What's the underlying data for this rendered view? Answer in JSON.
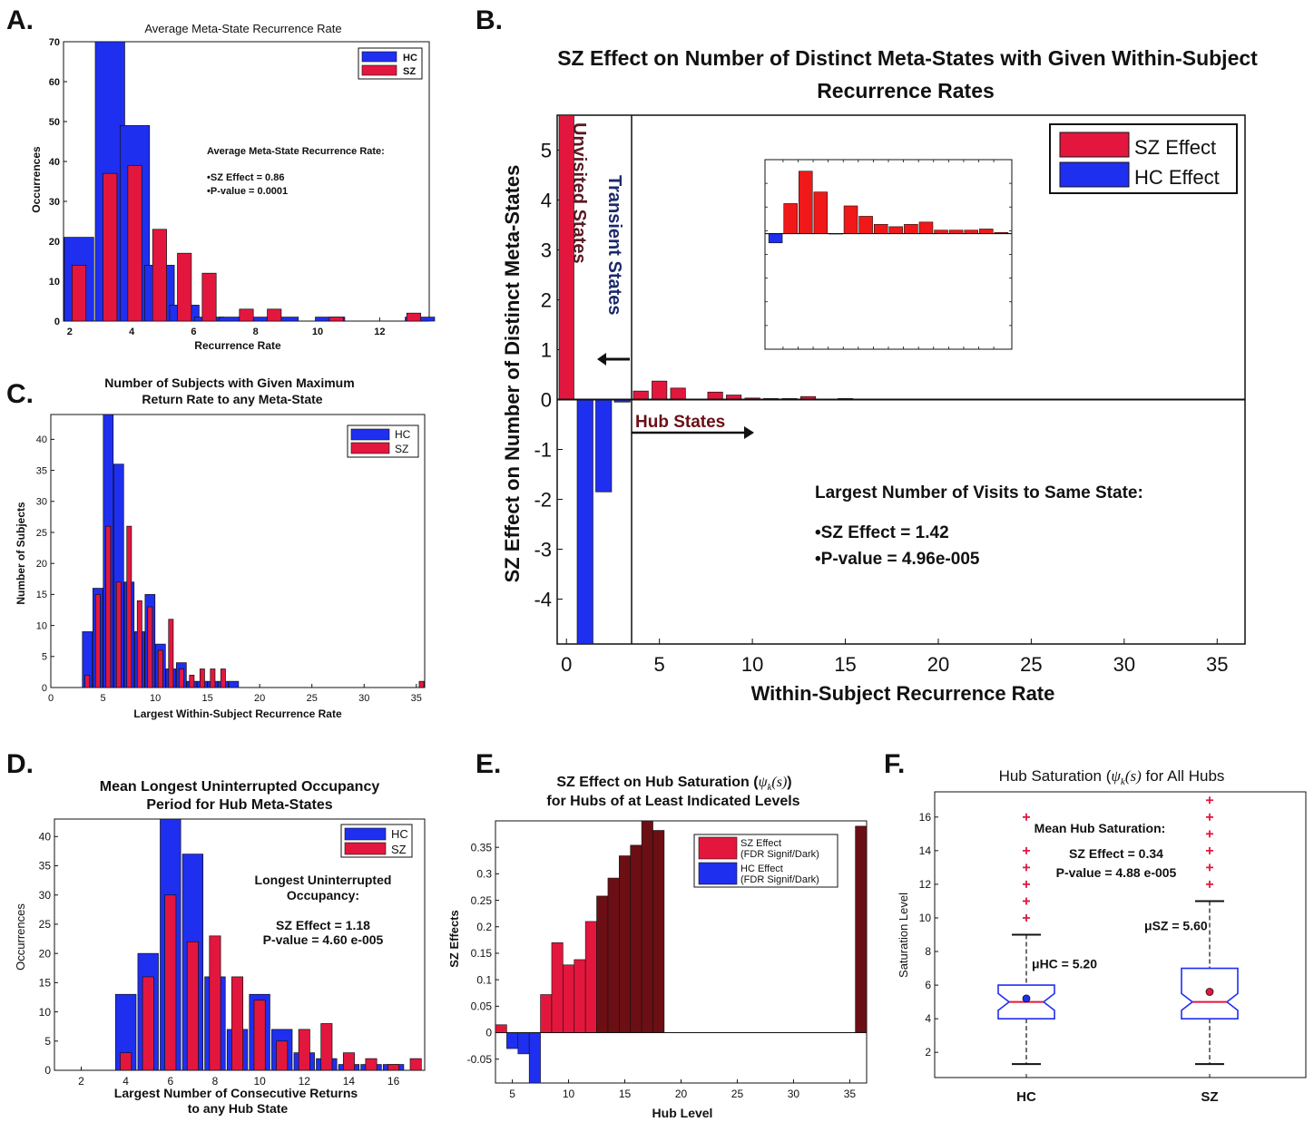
{
  "panels": {
    "A": {
      "label": "A."
    },
    "B": {
      "label": "B."
    },
    "C": {
      "label": "C."
    },
    "D": {
      "label": "D."
    },
    "E": {
      "label": "E."
    },
    "F": {
      "label": "F."
    }
  },
  "chart_data": [
    {
      "id": "A",
      "type": "bar",
      "title": "Average Meta-State Recurrence Rate",
      "xlabel": "Recurrence Rate",
      "ylabel": "Occurrences",
      "xlim": [
        1.8,
        13.6
      ],
      "ylim": [
        0,
        70
      ],
      "xticks": [
        2,
        4,
        6,
        8,
        10,
        12
      ],
      "yticks": [
        0,
        10,
        20,
        30,
        40,
        50,
        60,
        70
      ],
      "legend": "top-right",
      "colors": {
        "HC": "#1f2ff0",
        "SZ": "#e3173e"
      },
      "series": [
        {
          "name": "HC",
          "x": [
            2.3,
            3.3,
            4.1,
            4.9,
            5.7,
            6.5,
            7.3,
            8.1,
            8.9,
            10.4,
            13.3
          ],
          "values": [
            21,
            70,
            49,
            14,
            4,
            1,
            1,
            1,
            1,
            1,
            1
          ]
        },
        {
          "name": "SZ",
          "x": [
            2.3,
            3.3,
            4.1,
            4.9,
            5.7,
            6.5,
            7.7,
            8.6,
            10.6,
            13.1
          ],
          "values": [
            14,
            37,
            39,
            23,
            17,
            12,
            3,
            3,
            1,
            2
          ]
        }
      ],
      "annotation": {
        "title": "Average Meta-State Recurrence Rate:",
        "lines": [
          "•SZ Effect = 0.86",
          "•P-value = 0.0001"
        ]
      }
    },
    {
      "id": "B",
      "type": "bar",
      "title": "SZ Effect on Number of Distinct Meta-States with Given Within-Subject Recurrence Rates",
      "xlabel": "Within-Subject Recurrence Rate",
      "ylabel": "SZ Effect on Number of Distinct Meta-States",
      "xlim": [
        -0.5,
        36.5
      ],
      "ylim": [
        -4.9,
        5.7
      ],
      "xticks": [
        0,
        5,
        10,
        15,
        20,
        25,
        30,
        35
      ],
      "yticks": [
        -4,
        -3,
        -2,
        -1,
        0,
        1,
        2,
        3,
        4,
        5
      ],
      "legend": "top-right",
      "colors": {
        "SZ Effect": "#e3173e",
        "HC Effect": "#1f2ff0"
      },
      "series": [
        {
          "name": "SZ Effect",
          "x": [
            0,
            4,
            5,
            6,
            8,
            9,
            10,
            11,
            12,
            13,
            15,
            17
          ],
          "values": [
            5.7,
            0.17,
            0.37,
            0.23,
            0.15,
            0.09,
            0.03,
            0.02,
            0.02,
            0.06,
            0.02,
            0.01
          ]
        },
        {
          "name": "HC Effect",
          "x": [
            1,
            2,
            3
          ],
          "values": [
            -4.9,
            -1.85,
            -0.05
          ]
        }
      ],
      "annotations": [
        "Unvisited States",
        "Transient States",
        "Hub States"
      ],
      "inset_values": [
        -0.4,
        1.3,
        2.7,
        1.8,
        0.0,
        1.2,
        0.75,
        0.4,
        0.3,
        0.4,
        0.5,
        0.15,
        0.15,
        0.15,
        0.2,
        0.05
      ],
      "note": {
        "title": "Largest Number of Visits to Same State:",
        "lines": [
          "•SZ Effect = 1.42",
          "•P-value = 4.96e-005"
        ]
      }
    },
    {
      "id": "C",
      "type": "bar",
      "title": "Number of Subjects with Given Maximum Return Rate to  any Meta-State",
      "xlabel": "Largest Within-Subject Recurrence Rate",
      "ylabel": "Number of Subjects",
      "xlim": [
        0,
        35.8
      ],
      "ylim": [
        0,
        44
      ],
      "xticks": [
        0,
        5,
        10,
        15,
        20,
        25,
        30,
        35
      ],
      "yticks": [
        0,
        5,
        10,
        15,
        20,
        25,
        30,
        35,
        40
      ],
      "legend": "top-right",
      "colors": {
        "HC": "#1f2ff0",
        "SZ": "#e3173e"
      },
      "series": [
        {
          "name": "HC",
          "x": [
            3.5,
            4.5,
            5.5,
            6.5,
            7.5,
            8.5,
            9.5,
            10.5,
            11.5,
            12.5,
            13.5,
            14.5,
            15.5,
            16.5,
            17.5
          ],
          "values": [
            9,
            16,
            44,
            36,
            17,
            9,
            15,
            7,
            3,
            4,
            1,
            1,
            1,
            1,
            1
          ]
        },
        {
          "name": "SZ",
          "x": [
            3.5,
            4.5,
            5.5,
            6.5,
            7.5,
            8.5,
            9.5,
            10.5,
            11.5,
            12.5,
            13.5,
            14.5,
            15.5,
            16.5,
            35.5
          ],
          "values": [
            2,
            15,
            26,
            17,
            26,
            14,
            13,
            6,
            11,
            3,
            2,
            3,
            3,
            3,
            1
          ]
        }
      ]
    },
    {
      "id": "D",
      "type": "bar",
      "title": "Mean Longest Uninterrupted Occupancy Period for Hub Meta-States",
      "xlabel": "Largest Number of Consecutive Returns to any Hub State",
      "ylabel": "Occurrences",
      "xlim": [
        0.8,
        17.4
      ],
      "ylim": [
        0,
        43
      ],
      "xticks": [
        2,
        4,
        6,
        8,
        10,
        12,
        14,
        16
      ],
      "yticks": [
        0,
        5,
        10,
        15,
        20,
        25,
        30,
        35,
        40
      ],
      "legend": "top-right",
      "colors": {
        "HC": "#1f2ff0",
        "SZ": "#e3173e"
      },
      "series": [
        {
          "name": "HC",
          "x": [
            4,
            5,
            6,
            7,
            8,
            9,
            10,
            11,
            12,
            13,
            14,
            15,
            16
          ],
          "values": [
            13,
            20,
            43,
            37,
            16,
            7,
            13,
            7,
            3,
            2,
            1,
            1,
            1
          ]
        },
        {
          "name": "SZ",
          "x": [
            4,
            5,
            6,
            7,
            8,
            9,
            10,
            11,
            12,
            13,
            14,
            15,
            16,
            17
          ],
          "values": [
            3,
            16,
            30,
            22,
            23,
            16,
            12,
            5,
            7,
            8,
            3,
            2,
            1,
            2
          ]
        }
      ],
      "annotation": {
        "title": "Longest Uninterrupted Occupancy:",
        "lines": [
          "SZ Effect = 1.18",
          "P-value = 4.60 e-005"
        ]
      }
    },
    {
      "id": "E",
      "type": "bar",
      "title": "SZ Effect on Hub Saturation (ψk(s)) for Hubs of at Least Indicated Levels",
      "xlabel": "Hub Level",
      "ylabel": "SZ Effects",
      "xlim": [
        3.5,
        36.5
      ],
      "ylim": [
        -0.095,
        0.4
      ],
      "xticks": [
        5,
        10,
        15,
        20,
        25,
        30,
        35
      ],
      "yticks": [
        -0.05,
        0,
        0.05,
        0.1,
        0.15,
        0.2,
        0.25,
        0.3,
        0.35
      ],
      "legend": "top-right",
      "colors": {
        "SZ Effect": "#e3173e",
        "HC Effect": "#1f2ff0",
        "SZ Effect dark": "#6b0f14",
        "HC Effect dark": "#0c1490"
      },
      "legend_entries": [
        {
          "name": "SZ Effect",
          "sub": "(FDR Signif/Dark)"
        },
        {
          "name": "HC Effect",
          "sub": "(FDR Signif/Dark)"
        }
      ],
      "x": [
        4,
        5,
        6,
        7,
        8,
        9,
        10,
        11,
        12,
        13,
        14,
        15,
        16,
        17,
        18,
        36
      ],
      "values": [
        0.015,
        -0.03,
        -0.04,
        -0.095,
        0.072,
        0.17,
        0.128,
        0.138,
        0.21,
        0.258,
        0.292,
        0.334,
        0.354,
        0.4,
        0.382,
        0.39
      ],
      "significant": [
        false,
        false,
        false,
        false,
        false,
        false,
        false,
        false,
        false,
        true,
        true,
        true,
        true,
        true,
        true,
        true
      ]
    },
    {
      "id": "F",
      "type": "box",
      "title": "Hub Saturation (ψk(s)) for All Hubs",
      "xlabel": "",
      "ylabel": "Saturation Level",
      "categories": [
        "HC",
        "SZ"
      ],
      "ylim": [
        0.5,
        17.5
      ],
      "yticks": [
        2,
        4,
        6,
        8,
        10,
        12,
        14,
        16
      ],
      "boxes": [
        {
          "name": "HC",
          "whisker_low": 1.3,
          "q1": 4.0,
          "median": 5.0,
          "q3": 6.0,
          "whisker_high": 9.0,
          "mean": 5.2,
          "outliers": [
            10,
            11,
            12,
            13,
            14,
            16
          ],
          "mean_label": "μHC = 5.20"
        },
        {
          "name": "SZ",
          "whisker_low": 1.3,
          "q1": 4.0,
          "median": 5.0,
          "q3": 7.0,
          "whisker_high": 11.0,
          "mean": 5.6,
          "outliers": [
            12,
            13,
            14,
            15,
            16,
            17
          ],
          "mean_label": "μSZ = 5.60"
        }
      ],
      "annotation": {
        "title": "Mean  Hub Saturation:",
        "lines": [
          "SZ Effect = 0.34",
          "P-value = 4.88 e-005"
        ]
      }
    }
  ]
}
